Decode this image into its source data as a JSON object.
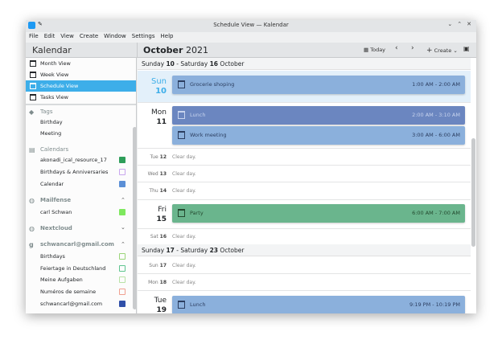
{
  "window": {
    "title": "Schedule View — Kalendar",
    "controls": [
      "⌄",
      "⌃",
      "✕"
    ]
  },
  "menu": [
    "File",
    "Edit",
    "View",
    "Create",
    "Window",
    "Settings",
    "Help"
  ],
  "header": {
    "app_title": "Kalendar",
    "month": "October",
    "year": "2021",
    "today_label": "Today",
    "create_label": "Create"
  },
  "sidebar": {
    "views": [
      {
        "label": "Month View",
        "icon": "month-view-icon"
      },
      {
        "label": "Week View",
        "icon": "week-view-icon"
      },
      {
        "label": "Schedule View",
        "icon": "schedule-view-icon",
        "selected": true
      },
      {
        "label": "Tasks View",
        "icon": "tasks-view-icon"
      }
    ],
    "tags": {
      "title": "Tags",
      "items": [
        "Birthday",
        "Meeting"
      ]
    },
    "calendars": {
      "title": "Calendars",
      "items": [
        {
          "label": "akonadi_ical_resource_17",
          "color": "#2e9e5a",
          "filled": true
        },
        {
          "label": "Birthdays & Anniversaries",
          "color": "#c9a6ee",
          "filled": false
        },
        {
          "label": "Calendar",
          "color": "#5b8fd6",
          "filled": true
        }
      ]
    },
    "mailfense": {
      "title": "Mailfense",
      "expanded": true,
      "items": [
        {
          "label": "carl Schwan",
          "color": "#7ee85e",
          "filled": true
        }
      ]
    },
    "nextcloud": {
      "title": "Nextcloud",
      "expanded": false
    },
    "gmail": {
      "title": "schwancarl@gmail.com",
      "expanded": true,
      "items": [
        {
          "label": "Birthdays",
          "color": "#9bd57a",
          "filled": false
        },
        {
          "label": "Feiertage in Deutschland",
          "color": "#5ec48f",
          "filled": false
        },
        {
          "label": "Meine Aufgaben",
          "color": "#b8e2a6",
          "filled": false
        },
        {
          "label": "Numéros de semaine",
          "color": "#f0a090",
          "filled": false
        },
        {
          "label": "schwancarl@gmail.com",
          "color": "#2f4fa8",
          "filled": true
        }
      ]
    }
  },
  "schedule": {
    "week1": {
      "start_day": "Sunday",
      "start_num": "10",
      "end_day": "Saturday",
      "end_num": "16",
      "month": "October"
    },
    "week2": {
      "start_day": "Sunday",
      "start_num": "17",
      "end_day": "Saturday",
      "end_num": "23",
      "month": "October"
    },
    "clear_text": "Clear day.",
    "days": [
      {
        "dow": "Sun",
        "num": "10",
        "today": true,
        "events": [
          {
            "title": "Grocerie shoping",
            "time": "1:00 AM - 2:00 AM",
            "color": "#8bb0dc"
          }
        ]
      },
      {
        "dow": "Mon",
        "num": "11",
        "events": [
          {
            "title": "Lunch",
            "time": "2:00 AM - 3:10 AM",
            "color": "#6b86c0"
          },
          {
            "title": "Work meeting",
            "time": "3:00 AM - 6:00 AM",
            "color": "#8bb0dc"
          }
        ]
      },
      {
        "dow": "Tue",
        "num": "12"
      },
      {
        "dow": "Wed",
        "num": "13"
      },
      {
        "dow": "Thu",
        "num": "14"
      },
      {
        "dow": "Fri",
        "num": "15",
        "events": [
          {
            "title": "Party",
            "time": "6:00 AM - 7:00 AM",
            "color": "#6ab58d"
          }
        ]
      },
      {
        "dow": "Sat",
        "num": "16"
      },
      {
        "dow": "Sun",
        "num": "17"
      },
      {
        "dow": "Mon",
        "num": "18"
      },
      {
        "dow": "Tue",
        "num": "19",
        "events": [
          {
            "title": "Lunch",
            "time": "9:19 PM - 10:19 PM",
            "color": "#8bb0dc"
          }
        ]
      }
    ]
  }
}
